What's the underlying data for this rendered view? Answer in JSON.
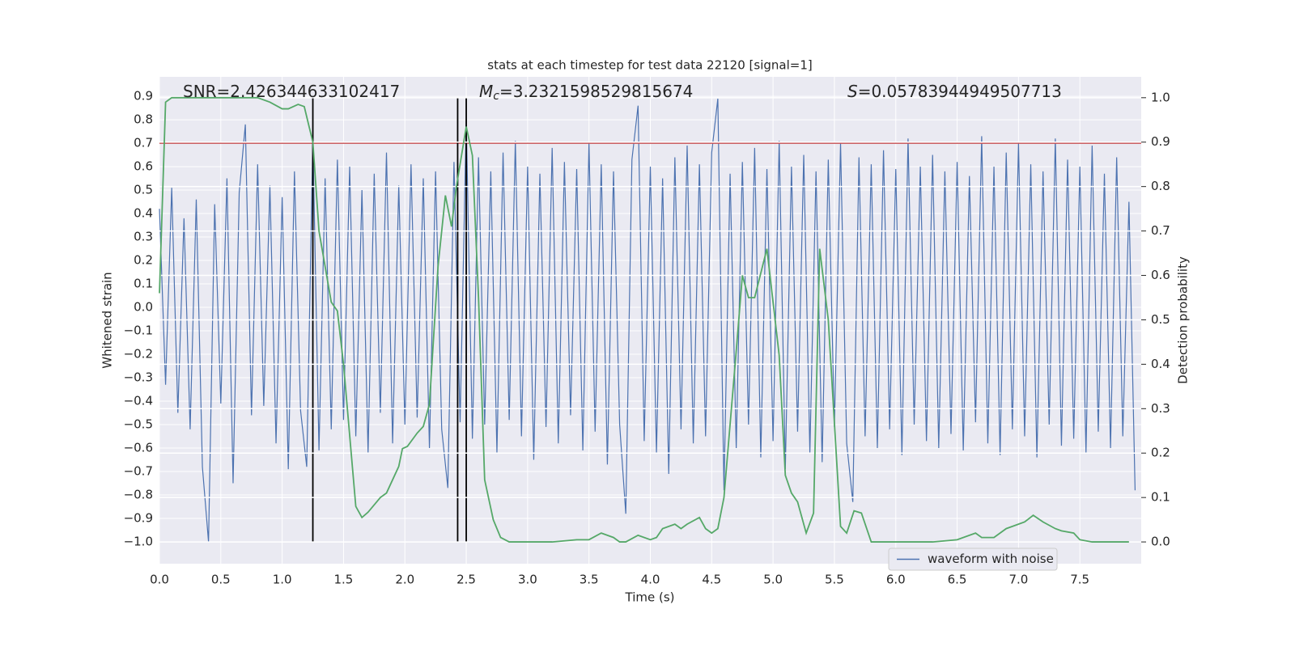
{
  "chart_data": {
    "type": "line",
    "title": "stats at each timestep for test data 22120 [signal=1]",
    "xlabel": "Time (s)",
    "ylabel": "Whitened strain",
    "y2label": "Detection probability",
    "xlim": [
      0,
      8
    ],
    "ylim": [
      -1.093,
      0.983
    ],
    "y2lim": [
      -0.049,
      1.047
    ],
    "xticks": [
      {
        "value": 0,
        "label": "0.0"
      },
      0.5,
      {
        "value": 1,
        "label": "1.0"
      },
      1.5,
      {
        "value": 2,
        "label": "2.0"
      },
      2.5,
      {
        "value": 3,
        "label": "3.0"
      },
      3.5,
      {
        "value": 4,
        "label": "4.0"
      },
      4.5,
      {
        "value": 5,
        "label": "5.0"
      },
      5.5,
      {
        "value": 6,
        "label": "6.0"
      },
      6.5,
      {
        "value": 7,
        "label": "7.0"
      },
      7.5
    ],
    "yticks": [
      {
        "value": -1,
        "label": "−1.0"
      },
      {
        "value": -0.9,
        "label": "−0.9"
      },
      {
        "value": -0.8,
        "label": "−0.8"
      },
      {
        "value": -0.7,
        "label": "−0.7"
      },
      {
        "value": -0.6,
        "label": "−0.6"
      },
      {
        "value": -0.5,
        "label": "−0.5"
      },
      {
        "value": -0.4,
        "label": "−0.4"
      },
      {
        "value": -0.3,
        "label": "−0.3"
      },
      {
        "value": -0.2,
        "label": "−0.2"
      },
      {
        "value": -0.1,
        "label": "−0.1"
      },
      {
        "value": 0,
        "label": "0.0"
      },
      0.1,
      0.2,
      0.3,
      0.4,
      0.5,
      0.6,
      0.7,
      0.8,
      0.9
    ],
    "y2ticks": [
      {
        "value": 0,
        "label": "0.0"
      },
      0.1,
      0.2,
      0.3,
      0.4,
      0.5,
      0.6,
      0.7,
      0.8,
      0.9,
      {
        "value": 1,
        "label": "1.0"
      }
    ],
    "grid": true,
    "legend": "lower right",
    "annotations": [
      {
        "parts": [
          "SNR=2.426344633102417"
        ]
      },
      {
        "parts": [
          "M",
          "c",
          "=3.2321598529815674"
        ]
      },
      {
        "parts": [
          "S",
          "=0.05783944949507713"
        ]
      }
    ],
    "hlines": [
      {
        "value": 0.7,
        "color": "#c44e52"
      }
    ],
    "vlines": {
      "color": "#000000",
      "x": [
        1.25,
        2.43,
        2.5
      ],
      "y2range": [
        0,
        1
      ]
    },
    "series": [
      {
        "name": "waveform with noise",
        "color": "#4c72b0",
        "axis": "y",
        "x": [
          0,
          0.05,
          0.1,
          0.15,
          0.2,
          0.25,
          0.3,
          0.35,
          0.4,
          0.45,
          0.5,
          0.55,
          0.6,
          0.65,
          0.7,
          0.75,
          0.8,
          0.85,
          0.9,
          0.95,
          1,
          1.05,
          1.1,
          1.15,
          1.2,
          1.25,
          1.3,
          1.35,
          1.4,
          1.45,
          1.5,
          1.55,
          1.6,
          1.65,
          1.7,
          1.75,
          1.8,
          1.85,
          1.9,
          1.95,
          2,
          2.05,
          2.1,
          2.15,
          2.2,
          2.25,
          2.3,
          2.35,
          2.4,
          2.45,
          2.5,
          2.55,
          2.6,
          2.65,
          2.7,
          2.75,
          2.8,
          2.85,
          2.9,
          2.95,
          3,
          3.05,
          3.1,
          3.15,
          3.2,
          3.25,
          3.3,
          3.35,
          3.4,
          3.45,
          3.5,
          3.55,
          3.6,
          3.65,
          3.7,
          3.75,
          3.8,
          3.85,
          3.9,
          3.95,
          4,
          4.05,
          4.1,
          4.15,
          4.2,
          4.25,
          4.3,
          4.35,
          4.4,
          4.45,
          4.5,
          4.55,
          4.6,
          4.65,
          4.7,
          4.75,
          4.8,
          4.85,
          4.9,
          4.95,
          5,
          5.05,
          5.1,
          5.15,
          5.2,
          5.25,
          5.3,
          5.35,
          5.4,
          5.45,
          5.5,
          5.55,
          5.6,
          5.65,
          5.7,
          5.75,
          5.8,
          5.85,
          5.9,
          5.95,
          6,
          6.05,
          6.1,
          6.15,
          6.2,
          6.25,
          6.3,
          6.35,
          6.4,
          6.45,
          6.5,
          6.55,
          6.6,
          6.65,
          6.7,
          6.75,
          6.8,
          6.85,
          6.9,
          6.95,
          7,
          7.05,
          7.1,
          7.15,
          7.2,
          7.25,
          7.3,
          7.35,
          7.4,
          7.45,
          7.5,
          7.55,
          7.6,
          7.65,
          7.7,
          7.75,
          7.8,
          7.85,
          7.9,
          7.95
        ],
        "values": [
          0.42,
          -0.33,
          0.51,
          -0.45,
          0.38,
          -0.52,
          0.46,
          -0.68,
          -1.0,
          0.44,
          -0.41,
          0.55,
          -0.75,
          0.49,
          0.78,
          -0.46,
          0.61,
          -0.42,
          0.52,
          -0.58,
          0.47,
          -0.69,
          0.58,
          -0.44,
          -0.68,
          0.72,
          -0.61,
          0.55,
          -0.52,
          0.63,
          -0.48,
          0.6,
          -0.55,
          0.5,
          -0.62,
          0.57,
          -0.45,
          0.66,
          -0.58,
          0.52,
          -0.5,
          0.61,
          -0.47,
          0.55,
          -0.6,
          0.58,
          -0.52,
          -0.77,
          0.62,
          -0.49,
          0.8,
          -0.56,
          0.64,
          -0.5,
          0.58,
          -0.62,
          0.66,
          -0.48,
          0.71,
          -0.55,
          0.6,
          -0.65,
          0.57,
          -0.51,
          0.68,
          -0.58,
          0.62,
          -0.46,
          0.59,
          -0.61,
          0.7,
          -0.53,
          0.61,
          -0.67,
          0.58,
          -0.5,
          -0.88,
          0.63,
          0.86,
          -0.57,
          0.6,
          -0.62,
          0.55,
          -0.71,
          0.64,
          -0.52,
          0.69,
          -0.58,
          0.61,
          -0.55,
          0.66,
          0.89,
          -0.78,
          0.57,
          -0.6,
          0.62,
          -0.5,
          0.68,
          -0.64,
          0.59,
          -0.57,
          0.71,
          -0.69,
          0.6,
          -0.53,
          0.65,
          -0.62,
          0.58,
          -0.66,
          0.63,
          -0.51,
          0.7,
          -0.58,
          -0.83,
          0.64,
          -0.55,
          0.61,
          -0.6,
          0.67,
          -0.52,
          0.59,
          -0.63,
          0.72,
          -0.5,
          0.6,
          -0.57,
          0.65,
          -0.6,
          0.58,
          -0.54,
          0.62,
          -0.61,
          0.56,
          -0.49,
          0.73,
          -0.58,
          0.6,
          -0.63,
          0.66,
          -0.52,
          0.7,
          -0.55,
          0.61,
          -0.64,
          0.58,
          -0.5,
          0.72,
          -0.59,
          0.63,
          -0.56,
          0.6,
          -0.62,
          0.69,
          -0.53,
          0.57,
          -0.6,
          0.64,
          -0.55,
          0.45,
          -0.78
        ]
      },
      {
        "color": "#55a868",
        "axis": "y2",
        "x": [
          0,
          0.05,
          0.1,
          0.2,
          0.4,
          0.6,
          0.8,
          0.9,
          1,
          1.05,
          1.13,
          1.18,
          1.25,
          1.3,
          1.4,
          1.45,
          1.5,
          1.6,
          1.65,
          1.7,
          1.8,
          1.85,
          1.9,
          1.95,
          1.98,
          2.02,
          2.1,
          2.15,
          2.2,
          2.27,
          2.33,
          2.38,
          2.42,
          2.5,
          2.55,
          2.6,
          2.65,
          2.72,
          2.78,
          2.85,
          3,
          3.2,
          3.4,
          3.5,
          3.6,
          3.7,
          3.75,
          3.8,
          3.9,
          4,
          4.05,
          4.1,
          4.2,
          4.25,
          4.3,
          4.4,
          4.45,
          4.5,
          4.55,
          4.6,
          4.7,
          4.75,
          4.8,
          4.85,
          4.95,
          5.05,
          5.1,
          5.15,
          5.2,
          5.27,
          5.33,
          5.38,
          5.45,
          5.55,
          5.6,
          5.66,
          5.72,
          5.8,
          6,
          6.3,
          6.5,
          6.6,
          6.65,
          6.7,
          6.8,
          6.9,
          6.95,
          7.05,
          7.12,
          7.2,
          7.3,
          7.35,
          7.45,
          7.5,
          7.6,
          7.9
        ],
        "values": [
          0.56,
          0.99,
          1.0,
          1.0,
          1.0,
          1.0,
          1.0,
          0.99,
          0.975,
          0.975,
          0.985,
          0.98,
          0.9,
          0.7,
          0.54,
          0.52,
          0.4,
          0.08,
          0.055,
          0.067,
          0.1,
          0.11,
          0.14,
          0.17,
          0.21,
          0.215,
          0.245,
          0.26,
          0.31,
          0.62,
          0.78,
          0.71,
          0.8,
          0.935,
          0.87,
          0.55,
          0.14,
          0.05,
          0.01,
          0.0,
          0.0,
          0.0,
          0.005,
          0.005,
          0.02,
          0.01,
          0.0,
          0.0,
          0.015,
          0.005,
          0.01,
          0.03,
          0.04,
          0.03,
          0.04,
          0.055,
          0.03,
          0.02,
          0.03,
          0.1,
          0.43,
          0.6,
          0.55,
          0.55,
          0.66,
          0.42,
          0.15,
          0.11,
          0.09,
          0.02,
          0.065,
          0.66,
          0.5,
          0.035,
          0.02,
          0.07,
          0.065,
          0.0,
          0.0,
          0.0,
          0.005,
          0.015,
          0.02,
          0.01,
          0.01,
          0.03,
          0.035,
          0.045,
          0.06,
          0.045,
          0.03,
          0.025,
          0.02,
          0.005,
          0.0,
          0.0
        ]
      }
    ]
  }
}
